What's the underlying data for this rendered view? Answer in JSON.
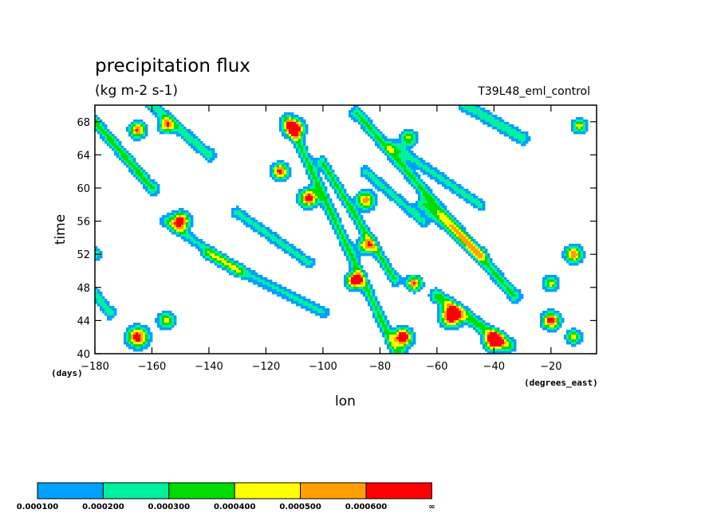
{
  "chart_data": {
    "type": "heatmap",
    "subtype": "filled-contour (Hovmoller)",
    "title": "precipitation flux",
    "units": "(kg m-2 s-1)",
    "run_label": "T39L48_eml_control",
    "xlabel": "lon",
    "ylabel": "time",
    "x_units": "(degrees_east)",
    "y_units": "(days)",
    "xlim": [
      -180,
      -4
    ],
    "ylim": [
      40,
      70
    ],
    "xticks": [
      -180,
      -160,
      -140,
      -120,
      -100,
      -80,
      -60,
      -40,
      -20
    ],
    "xtick_labels": [
      "−180",
      "−160",
      "−140",
      "−120",
      "−100",
      "−80",
      "−60",
      "−40",
      "−20"
    ],
    "yticks": [
      40,
      44,
      48,
      52,
      56,
      60,
      64,
      68
    ],
    "ytick_labels": [
      "40",
      "44",
      "48",
      "52",
      "56",
      "60",
      "64",
      "68"
    ],
    "levels": [
      {
        "label": "0.000100",
        "color": "#00a0ff"
      },
      {
        "label": "0.000200",
        "color": "#00f0a0"
      },
      {
        "label": "0.000300",
        "color": "#00dc00"
      },
      {
        "label": "0.000400",
        "color": "#ffff00"
      },
      {
        "label": "0.000500",
        "color": "#ffa000"
      },
      {
        "label": "0.000600",
        "color": "#ff0000"
      },
      {
        "label": "∞",
        "color": null
      }
    ],
    "features": [
      {
        "lon": -180,
        "time": 52,
        "dlon": -35,
        "dtime": 14,
        "w": 2.6,
        "amp": 0.00028
      },
      {
        "lon": -160,
        "time": 60,
        "dlon": -25,
        "dtime": 10,
        "w": 2.6,
        "amp": 0.00034
      },
      {
        "lon": -150,
        "time": 56,
        "dlon": 0,
        "dtime": 0,
        "w": 3.2,
        "amp": 0.0007
      },
      {
        "lon": -175,
        "time": 45,
        "dlon": -35,
        "dtime": 16,
        "w": 2.6,
        "amp": 0.00028
      },
      {
        "lon": -165,
        "time": 42,
        "dlon": 0,
        "dtime": 0,
        "w": 3.6,
        "amp": 0.0007
      },
      {
        "lon": -155,
        "time": 44,
        "dlon": 0,
        "dtime": 0,
        "w": 3,
        "amp": 0.00045
      },
      {
        "lon": -140,
        "time": 64,
        "dlon": -40,
        "dtime": 12,
        "w": 2.6,
        "amp": 0.00028
      },
      {
        "lon": -165,
        "time": 67,
        "dlon": 0,
        "dtime": 0,
        "w": 2.8,
        "amp": 0.00062
      },
      {
        "lon": -155,
        "time": 67.5,
        "dlon": 0,
        "dtime": 0,
        "w": 2.6,
        "amp": 0.0005
      },
      {
        "lon": -112,
        "time": 68,
        "dlon": 38,
        "dtime": -28,
        "w": 3.0,
        "amp": 0.00032
      },
      {
        "lon": -110,
        "time": 67.2,
        "dlon": 0,
        "dtime": 0,
        "w": 3.2,
        "amp": 0.0008
      },
      {
        "lon": -115,
        "time": 62,
        "dlon": 0,
        "dtime": 0,
        "w": 2.8,
        "amp": 0.00066
      },
      {
        "lon": -105,
        "time": 58.8,
        "dlon": 0,
        "dtime": 0,
        "w": 3.2,
        "amp": 0.0007
      },
      {
        "lon": -85,
        "time": 58.5,
        "dlon": 0,
        "dtime": 0,
        "w": 3.2,
        "amp": 0.00058
      },
      {
        "lon": -85,
        "time": 53,
        "dlon": 0,
        "dtime": 0,
        "w": 3,
        "amp": 0.0005
      },
      {
        "lon": -100,
        "time": 63,
        "dlon": 25,
        "dtime": -14,
        "w": 2.6,
        "amp": 0.00032
      },
      {
        "lon": -88,
        "time": 69,
        "dlon": 55,
        "dtime": -22,
        "w": 2.8,
        "amp": 0.00032
      },
      {
        "lon": -70,
        "time": 66,
        "dlon": 0,
        "dtime": 0,
        "w": 3,
        "amp": 0.00042
      },
      {
        "lon": -89,
        "time": 48.8,
        "dlon": 0,
        "dtime": 0,
        "w": 2.8,
        "amp": 0.00075
      },
      {
        "lon": -72,
        "time": 42,
        "dlon": 0,
        "dtime": 0,
        "w": 3.2,
        "amp": 0.0008
      },
      {
        "lon": -55,
        "time": 44.5,
        "dlon": 0,
        "dtime": 0,
        "w": 3.6,
        "amp": 0.0008
      },
      {
        "lon": -40,
        "time": 41.5,
        "dlon": 0,
        "dtime": 0,
        "w": 3.2,
        "amp": 0.0008
      },
      {
        "lon": -68,
        "time": 48.5,
        "dlon": 0,
        "dtime": 0,
        "w": 2.6,
        "amp": 0.00062
      },
      {
        "lon": -60,
        "time": 47,
        "dlon": 25,
        "dtime": -6,
        "w": 2.6,
        "amp": 0.00036
      },
      {
        "lon": -20,
        "time": 44,
        "dlon": 0,
        "dtime": 0,
        "w": 3,
        "amp": 0.0007
      },
      {
        "lon": -12,
        "time": 42,
        "dlon": 0,
        "dtime": 0,
        "w": 2.6,
        "amp": 0.00045
      },
      {
        "lon": -12,
        "time": 52,
        "dlon": 0,
        "dtime": 0,
        "w": 3,
        "amp": 0.0006
      },
      {
        "lon": -20,
        "time": 48.5,
        "dlon": 0,
        "dtime": 0,
        "w": 2.6,
        "amp": 0.00045
      },
      {
        "lon": -45,
        "time": 52,
        "dlon": -20,
        "dtime": 6,
        "w": 2.6,
        "amp": 0.00028
      },
      {
        "lon": -10,
        "time": 67.5,
        "dlon": 0,
        "dtime": 0,
        "w": 2.6,
        "amp": 0.00045
      },
      {
        "lon": -30,
        "time": 66,
        "dlon": -20,
        "dtime": 4,
        "w": 2.6,
        "amp": 0.00028
      },
      {
        "lon": -130,
        "time": 50,
        "dlon": -25,
        "dtime": 6,
        "w": 2.4,
        "amp": 0.00022
      },
      {
        "lon": -100,
        "time": 45,
        "dlon": -40,
        "dtime": 7,
        "w": 2.4,
        "amp": 0.00022
      },
      {
        "lon": -65,
        "time": 56,
        "dlon": -20,
        "dtime": 6,
        "w": 2.4,
        "amp": 0.00024
      },
      {
        "lon": -130,
        "time": 57,
        "dlon": 25,
        "dtime": -6,
        "w": 2.4,
        "amp": 0.00024
      },
      {
        "lon": -45,
        "time": 58,
        "dlon": -30,
        "dtime": 7,
        "w": 2.4,
        "amp": 0.00024
      }
    ]
  }
}
